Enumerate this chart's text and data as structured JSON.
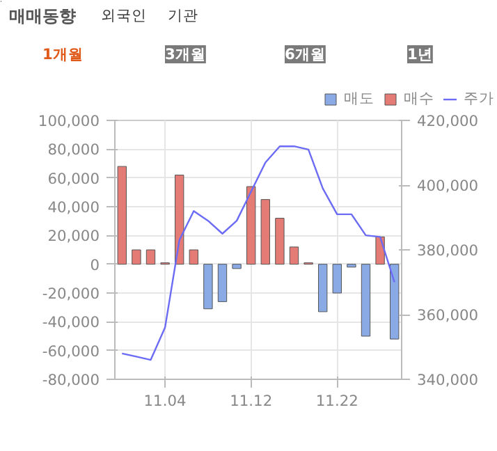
{
  "chart_data": {
    "type": "bar",
    "title": "매매동향",
    "annotations": [
      "외국인",
      "기관",
      "1개월",
      "3개월",
      "6개월",
      "1년"
    ],
    "categories": [
      null,
      null,
      null,
      "11.04",
      null,
      null,
      null,
      null,
      null,
      "11.12",
      null,
      null,
      null,
      null,
      null,
      "11.22",
      null,
      null,
      null,
      null
    ],
    "series": [
      {
        "name": "매도",
        "color": "#8aaae6",
        "values": [
          null,
          null,
          null,
          null,
          null,
          null,
          -31000,
          -26000,
          -3000,
          null,
          null,
          null,
          null,
          null,
          -33000,
          -20000,
          -2000,
          -50000,
          null,
          -52000
        ]
      },
      {
        "name": "매수",
        "color": "#e47b74",
        "values": [
          68000,
          10000,
          10000,
          1000,
          62000,
          10000,
          null,
          null,
          null,
          54000,
          45000,
          32000,
          12000,
          1000,
          null,
          null,
          null,
          null,
          19000,
          null
        ]
      },
      {
        "name": "주가",
        "type": "line",
        "axis": "y2",
        "color": "#6b6bf5",
        "values": [
          348000,
          347000,
          346000,
          356000,
          383000,
          392000,
          389000,
          385000,
          389000,
          398000,
          407000,
          412000,
          412000,
          411000,
          399000,
          391000,
          391000,
          384500,
          384000,
          370000
        ]
      }
    ],
    "ylim": [
      -80000,
      100000
    ],
    "yticks": [
      {
        "value": -80000,
        "label": "-80,000"
      },
      {
        "value": -60000,
        "label": "-60,000"
      },
      {
        "value": -40000,
        "label": "-40,000"
      },
      {
        "value": -20000,
        "label": "-20,000"
      },
      0,
      {
        "value": 20000,
        "label": "20,000"
      },
      {
        "value": 40000,
        "label": "40,000"
      },
      {
        "value": 60000,
        "label": "60,000"
      },
      {
        "value": 80000,
        "label": "80,000"
      },
      {
        "value": 100000,
        "label": "100,000"
      }
    ],
    "y2lim": [
      340000,
      420000
    ],
    "y2ticks": [
      {
        "value": 340000,
        "label": "340,000"
      },
      {
        "value": 360000,
        "label": "360,000"
      },
      {
        "value": 380000,
        "label": "380,000"
      },
      {
        "value": 400000,
        "label": "400,000"
      },
      {
        "value": 420000,
        "label": "420,000"
      }
    ],
    "grid": true,
    "legend": "top right"
  }
}
